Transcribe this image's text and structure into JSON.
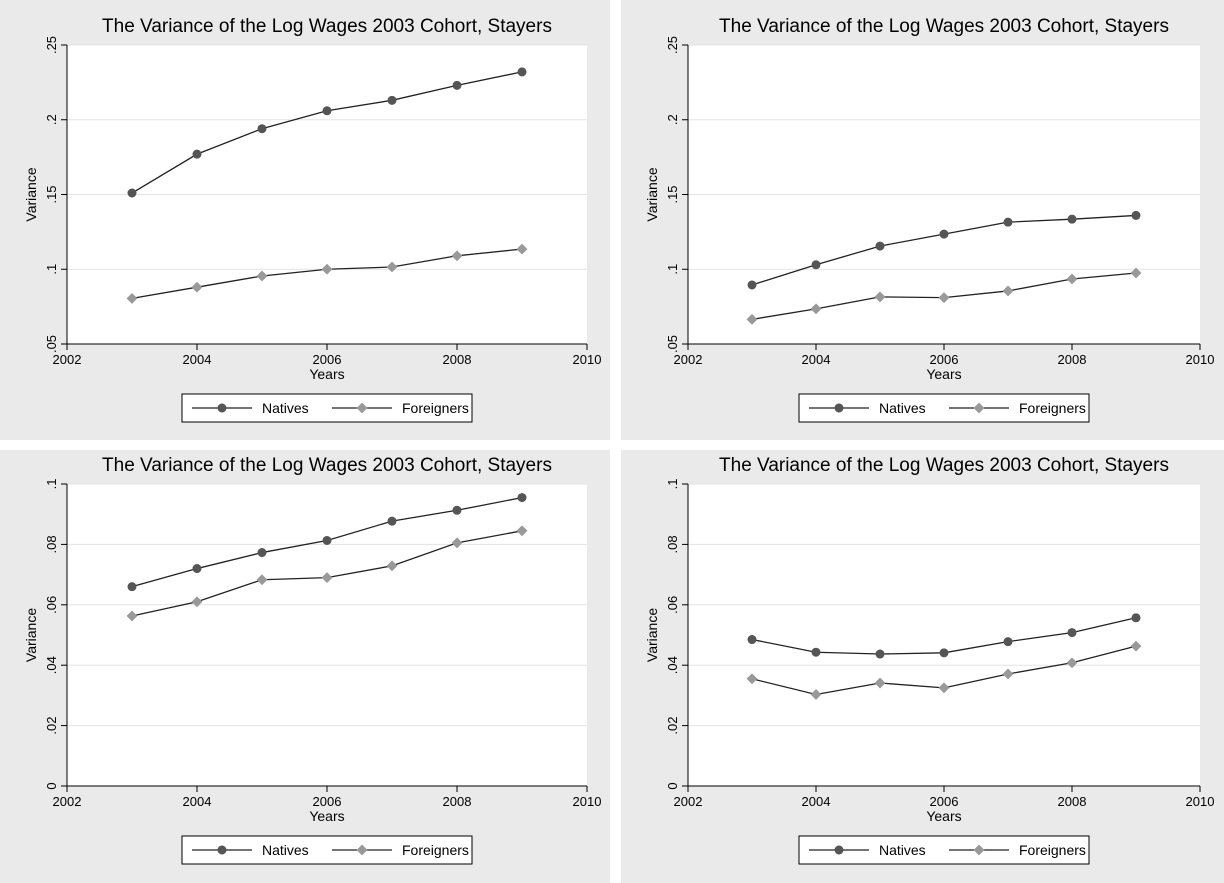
{
  "chart_data": [
    {
      "type": "line",
      "title": "The Variance of the Log Wages 2003 Cohort, Stayers",
      "xlabel": "Years",
      "ylabel": "Variance",
      "xlim": [
        2002,
        2010
      ],
      "ylim": [
        0.05,
        0.25
      ],
      "xticks": [
        "2002",
        "2004",
        "2006",
        "2008",
        "2010"
      ],
      "yticks": [
        ".05",
        ".1",
        ".15",
        ".2",
        ".25"
      ],
      "grid": true,
      "legend_position": "bottom",
      "x": [
        2003,
        2004,
        2005,
        2006,
        2007,
        2008,
        2009
      ],
      "series": [
        {
          "name": "Natives",
          "values": [
            0.151,
            0.177,
            0.194,
            0.206,
            0.213,
            0.223,
            0.232
          ],
          "marker": "circle",
          "color": "#555555"
        },
        {
          "name": "Foreigners",
          "values": [
            0.0805,
            0.088,
            0.0955,
            0.1,
            0.1015,
            0.109,
            0.1135
          ],
          "marker": "diamond",
          "color": "#999999"
        }
      ]
    },
    {
      "type": "line",
      "title": "The Variance of the Log Wages 2003 Cohort, Stayers",
      "xlabel": "Years",
      "ylabel": "Variance",
      "xlim": [
        2002,
        2010
      ],
      "ylim": [
        0.05,
        0.25
      ],
      "xticks": [
        "2002",
        "2004",
        "2006",
        "2008",
        "2010"
      ],
      "yticks": [
        ".05",
        ".1",
        ".15",
        ".2",
        ".25"
      ],
      "grid": true,
      "legend_position": "bottom",
      "x": [
        2003,
        2004,
        2005,
        2006,
        2007,
        2008,
        2009
      ],
      "series": [
        {
          "name": "Natives",
          "values": [
            0.0895,
            0.103,
            0.1155,
            0.1235,
            0.1315,
            0.1335,
            0.136
          ],
          "marker": "circle",
          "color": "#555555"
        },
        {
          "name": "Foreigners",
          "values": [
            0.0665,
            0.0735,
            0.0815,
            0.081,
            0.0855,
            0.0935,
            0.0975
          ],
          "marker": "diamond",
          "color": "#999999"
        }
      ]
    },
    {
      "type": "line",
      "title": "The Variance of the Log Wages 2003 Cohort, Stayers",
      "xlabel": "Years",
      "ylabel": "Variance",
      "xlim": [
        2002,
        2010
      ],
      "ylim": [
        0,
        0.1
      ],
      "xticks": [
        "2002",
        "2004",
        "2006",
        "2008",
        "2010"
      ],
      "yticks": [
        "0",
        ".02",
        ".04",
        ".06",
        ".08",
        ".1"
      ],
      "grid": true,
      "legend_position": "bottom",
      "x": [
        2003,
        2004,
        2005,
        2006,
        2007,
        2008,
        2009
      ],
      "series": [
        {
          "name": "Natives",
          "values": [
            0.066,
            0.072,
            0.0773,
            0.0813,
            0.0877,
            0.0913,
            0.0955
          ],
          "marker": "circle",
          "color": "#555555"
        },
        {
          "name": "Foreigners",
          "values": [
            0.0563,
            0.061,
            0.0683,
            0.069,
            0.0729,
            0.0805,
            0.0845
          ],
          "marker": "diamond",
          "color": "#999999"
        }
      ]
    },
    {
      "type": "line",
      "title": "The Variance of the Log Wages 2003 Cohort, Stayers",
      "xlabel": "Years",
      "ylabel": "Variance",
      "xlim": [
        2002,
        2010
      ],
      "ylim": [
        0,
        0.1
      ],
      "xticks": [
        "2002",
        "2004",
        "2006",
        "2008",
        "2010"
      ],
      "yticks": [
        "0",
        ".02",
        ".04",
        ".06",
        ".08",
        ".1"
      ],
      "grid": true,
      "legend_position": "bottom",
      "x": [
        2003,
        2004,
        2005,
        2006,
        2007,
        2008,
        2009
      ],
      "series": [
        {
          "name": "Natives",
          "values": [
            0.0485,
            0.0443,
            0.0437,
            0.0441,
            0.0478,
            0.0508,
            0.0557
          ],
          "marker": "circle",
          "color": "#555555"
        },
        {
          "name": "Foreigners",
          "values": [
            0.0355,
            0.0303,
            0.0341,
            0.0325,
            0.0371,
            0.0408,
            0.0463
          ],
          "marker": "diamond",
          "color": "#999999"
        }
      ]
    }
  ]
}
